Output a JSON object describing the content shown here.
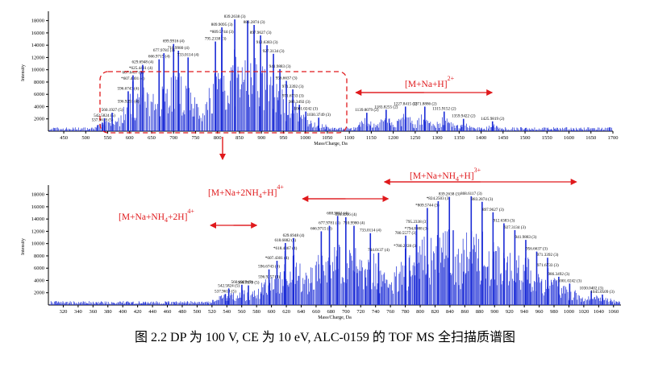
{
  "caption": "图 2.2 DP 为 100 V, CE 为 10 eV, ALC-0159 的 TOF MS 全扫描质谱图",
  "colors": {
    "spectrum": "#1a2bd6",
    "annotation": "#e0191c",
    "text": "#000000"
  },
  "chart_data": [
    {
      "type": "bar",
      "panel": "top",
      "xlabel": "Mass/Charge, Da",
      "ylabel": "Intensity",
      "xlim": [
        415,
        1700
      ],
      "ylim": [
        0,
        19000
      ],
      "xticks": [
        450,
        500,
        550,
        600,
        650,
        700,
        750,
        800,
        850,
        900,
        950,
        1000,
        1050,
        1100,
        1150,
        1200,
        1250,
        1300,
        1350,
        1400,
        1450,
        1500,
        1550,
        1600,
        1650,
        1700
      ],
      "yticks": [
        2000,
        4000,
        6000,
        8000,
        10000,
        12000,
        14000,
        16000,
        18000
      ],
      "peaks": [
        {
          "mz": 537.9618,
          "label": "537.9618 (5)",
          "intensity": 1400
        },
        {
          "mz": 542.5824,
          "label": "542.5824 (5)",
          "intensity": 2100
        },
        {
          "mz": 560.1927,
          "label": "560.1927 (5)",
          "intensity": 3000
        },
        {
          "mz": 596.6743,
          "label": "596.6743 (4)",
          "intensity": 6500
        },
        {
          "mz": 596.9257,
          "label": "596.9257 (4)",
          "intensity": 4400
        },
        {
          "mz": 607.4301,
          "label": "*607.4301 (4)",
          "intensity": 8100
        },
        {
          "mz": 607.6417,
          "label": "607.6417 (4)",
          "intensity": 9100
        },
        {
          "mz": 625.4431,
          "label": "*625.4431 (4)",
          "intensity": 9800
        },
        {
          "mz": 629.6948,
          "label": "629.6948 (4)",
          "intensity": 10800
        },
        {
          "mz": 666.9715,
          "label": "666.9715 (4)",
          "intensity": 11700
        },
        {
          "mz": 677.9781,
          "label": "677.9781 (4)",
          "intensity": 12700
        },
        {
          "mz": 699.9916,
          "label": "699.9916 (4)",
          "intensity": 14200
        },
        {
          "mz": 710.998,
          "label": "710.9980 (4)",
          "intensity": 13100
        },
        {
          "mz": 733.0114,
          "label": "733.0114 (4)",
          "intensity": 12000
        },
        {
          "mz": 795.2338,
          "label": "795.2338 (3)",
          "intensity": 14600
        },
        {
          "mz": 809.5744,
          "label": "*809.5744 (3)",
          "intensity": 15700
        },
        {
          "mz": 809.9095,
          "label": "809.9095 (3)",
          "intensity": 16900
        },
        {
          "mz": 839.2638,
          "label": "839.2638 (3)",
          "intensity": 18200
        },
        {
          "mz": 868.6117,
          "label": "",
          "intensity": 18000
        },
        {
          "mz": 883.2874,
          "label": "883.2874 (3)",
          "intensity": 17300
        },
        {
          "mz": 897.9627,
          "label": "897.9627 (3)",
          "intensity": 15600
        },
        {
          "mz": 912.6383,
          "label": "912.6383 (3)",
          "intensity": 14000
        },
        {
          "mz": 927.3134,
          "label": "927.3134 (3)",
          "intensity": 12600
        },
        {
          "mz": 941.9883,
          "label": "941.9883 (3)",
          "intensity": 10100
        },
        {
          "mz": 956.6637,
          "label": "956.6637 (3)",
          "intensity": 8200
        },
        {
          "mz": 971.3392,
          "label": "971.3392 (3)",
          "intensity": 6800
        },
        {
          "mz": 971.6733,
          "label": "971.6733 (3)",
          "intensity": 5300
        },
        {
          "mz": 986.3492,
          "label": "986.3492 (3)",
          "intensity": 4300
        },
        {
          "mz": 1001.0242,
          "label": "1001.0242 (3)",
          "intensity": 3200
        },
        {
          "mz": 1030.3749,
          "label": "1030.3749 (3)",
          "intensity": 2200
        },
        {
          "mz": 1139.8079,
          "label": "1139.8079 (2)",
          "intensity": 3000
        },
        {
          "mz": 1183.8255,
          "label": "1183.8255 (2)",
          "intensity": 3500
        },
        {
          "mz": 1227.8415,
          "label": "1227.8415 (2)",
          "intensity": 4000
        },
        {
          "mz": 1271.8886,
          "label": "1271.8886 (2)",
          "intensity": 4000
        },
        {
          "mz": 1315.9152,
          "label": "1315.9152 (2)",
          "intensity": 3200
        },
        {
          "mz": 1359.9422,
          "label": "1359.9422 (2)",
          "intensity": 2000
        },
        {
          "mz": 1425.9819,
          "label": "1425.9819 (2)",
          "intensity": 1600
        }
      ],
      "annotations": [
        {
          "text": "[M+Na+H]",
          "superscript": "2+",
          "arrow_from": 1115,
          "arrow_to": 1425
        }
      ]
    },
    {
      "type": "bar",
      "panel": "bottom",
      "xlabel": "Mass/Charge, Da",
      "ylabel": "Intensity",
      "xlim": [
        300,
        1070
      ],
      "ylim": [
        0,
        19000
      ],
      "xticks": [
        320,
        340,
        360,
        380,
        400,
        420,
        440,
        460,
        480,
        500,
        520,
        540,
        560,
        580,
        600,
        620,
        640,
        660,
        680,
        700,
        720,
        740,
        760,
        780,
        800,
        820,
        840,
        860,
        880,
        900,
        920,
        940,
        960,
        980,
        1000,
        1020,
        1040,
        1060
      ],
      "yticks": [
        2000,
        4000,
        6000,
        8000,
        10000,
        12000,
        14000,
        16000,
        18000
      ],
      "peaks": [
        {
          "mz": 537.9618,
          "label": "537.9618 (5)",
          "intensity": 1800
        },
        {
          "mz": 542.5824,
          "label": "542.5824 (5)",
          "intensity": 2700
        },
        {
          "mz": 560.1927,
          "label": "560.1927 (5)",
          "intensity": 3300
        },
        {
          "mz": 568.9979,
          "label": "568.9979 (5)",
          "intensity": 3200
        },
        {
          "mz": 596.9257,
          "label": "596.9257 (4)",
          "intensity": 4100
        },
        {
          "mz": 596.6743,
          "label": "596.6743 (4)",
          "intensity": 5800
        },
        {
          "mz": 607.4301,
          "label": "*607.4301 (4)",
          "intensity": 7200
        },
        {
          "mz": 618.4367,
          "label": "*618.4367 (4)",
          "intensity": 8800
        },
        {
          "mz": 618.6882,
          "label": "618.6882 (4)",
          "intensity": 10100
        },
        {
          "mz": 629.6948,
          "label": "629.6948 (4)",
          "intensity": 10900
        },
        {
          "mz": 666.9715,
          "label": "666.9715 (4)",
          "intensity": 12000
        },
        {
          "mz": 677.9781,
          "label": "677.9781 (4)",
          "intensity": 12900
        },
        {
          "mz": 688.9851,
          "label": "688.9851 (4)",
          "intensity": 14500
        },
        {
          "mz": 699.9916,
          "label": "699.9916 (4)",
          "intensity": 14300
        },
        {
          "mz": 710.998,
          "label": "710.9980 (4)",
          "intensity": 12900
        },
        {
          "mz": 733.0114,
          "label": "733.0114 (4)",
          "intensity": 11700
        },
        {
          "mz": 744.0137,
          "label": "744.0137 (4)",
          "intensity": 8500
        },
        {
          "mz": 780.2228,
          "label": "*780.2228 (3)",
          "intensity": 9200
        },
        {
          "mz": 780.5577,
          "label": "780.5577 (3)",
          "intensity": 11300
        },
        {
          "mz": 794.8988,
          "label": "*794.8988 (3)",
          "intensity": 12000
        },
        {
          "mz": 795.2338,
          "label": "795.2338 (3)",
          "intensity": 13100
        },
        {
          "mz": 809.5744,
          "label": "*809.5744 (3)",
          "intensity": 15800
        },
        {
          "mz": 824.2503,
          "label": "*824.2503 (3)",
          "intensity": 16900
        },
        {
          "mz": 839.2638,
          "label": "839.2638 (3)",
          "intensity": 17600
        },
        {
          "mz": 868.6117,
          "label": "868.6117 (3)",
          "intensity": 17700
        },
        {
          "mz": 883.2874,
          "label": "883.2874 (3)",
          "intensity": 16800
        },
        {
          "mz": 897.9627,
          "label": "897.9627 (3)",
          "intensity": 15100
        },
        {
          "mz": 912.6383,
          "label": "912.6383 (3)",
          "intensity": 13300
        },
        {
          "mz": 927.3134,
          "label": "927.3134 (3)",
          "intensity": 12200
        },
        {
          "mz": 941.9883,
          "label": "941.9883 (3)",
          "intensity": 10600
        },
        {
          "mz": 956.6637,
          "label": "956.6637 (3)",
          "intensity": 8700
        },
        {
          "mz": 971.3392,
          "label": "971.3392 (3)",
          "intensity": 7700
        },
        {
          "mz": 971.6733,
          "label": "971.6733 (3)",
          "intensity": 6000
        },
        {
          "mz": 986.3492,
          "label": "986.3492 (3)",
          "intensity": 4600
        },
        {
          "mz": 1001.0242,
          "label": "1001.0242 (3)",
          "intensity": 3500
        },
        {
          "mz": 1030.0402,
          "label": "1030.0402 (3)",
          "intensity": 2300
        },
        {
          "mz": 1045.0509,
          "label": "1045.0509 (3)",
          "intensity": 1700
        }
      ],
      "annotations": [
        {
          "text": "[M+Na+NH",
          "sub": "4",
          "text2": "+2H]",
          "superscript": "4+",
          "arrow_from": 580,
          "arrow_to": 518
        },
        {
          "text": "[M+Na+2NH",
          "sub": "4",
          "text2": "+H]",
          "superscript": "4+",
          "arrow_from": 642,
          "arrow_to": 757
        },
        {
          "text": "[M+Na+NH",
          "sub": "4",
          "text2": "+H]",
          "superscript": "3+",
          "arrow_from": 752,
          "arrow_to": 1010
        }
      ]
    }
  ]
}
